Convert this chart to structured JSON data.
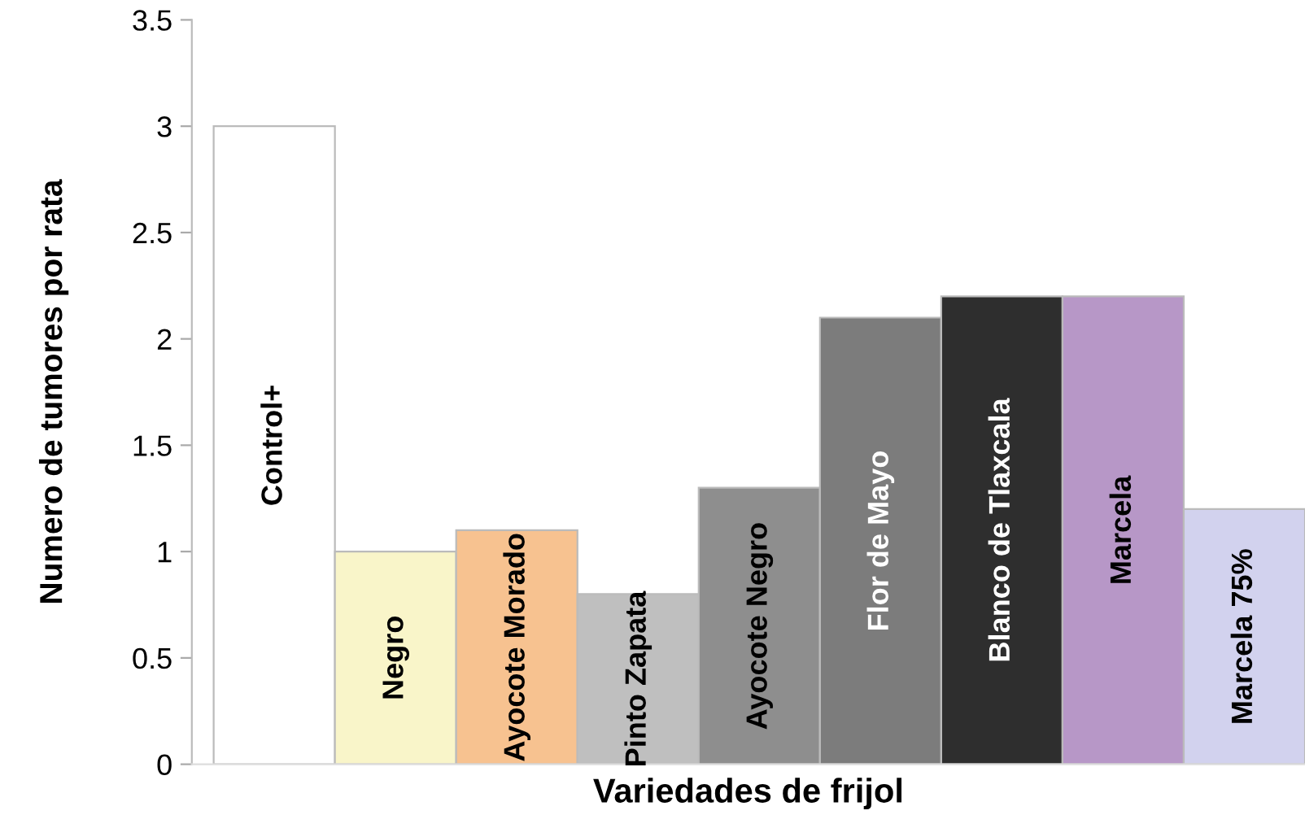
{
  "chart_data": {
    "type": "bar",
    "xlabel": "Variedades de frijol",
    "ylabel": "Numero de tumores por rata",
    "categories": [
      "Control+",
      "Negro",
      "Ayocote Morado",
      "Pinto Zapata",
      "Ayocote Negro",
      "Flor de Mayo",
      "Blanco de Tlaxcala",
      "Marcela",
      "Marcela 75%"
    ],
    "values": [
      3,
      1.0,
      1.1,
      0.8,
      1.3,
      2.1,
      2.2,
      2.2,
      1.2
    ],
    "colors": [
      "#ffffff",
      "#f9f5c9",
      "#f7c290",
      "#bfbfbf",
      "#8e8e8e",
      "#7c7c7c",
      "#2e2e2e",
      "#b797c7",
      "#d2d2ee"
    ],
    "ylim": [
      0,
      3.5
    ],
    "yticks": [
      0,
      0.5,
      1,
      1.5,
      2,
      2.5,
      3,
      3.5
    ],
    "tick_labels": "y",
    "grid": false,
    "legend": false
  }
}
